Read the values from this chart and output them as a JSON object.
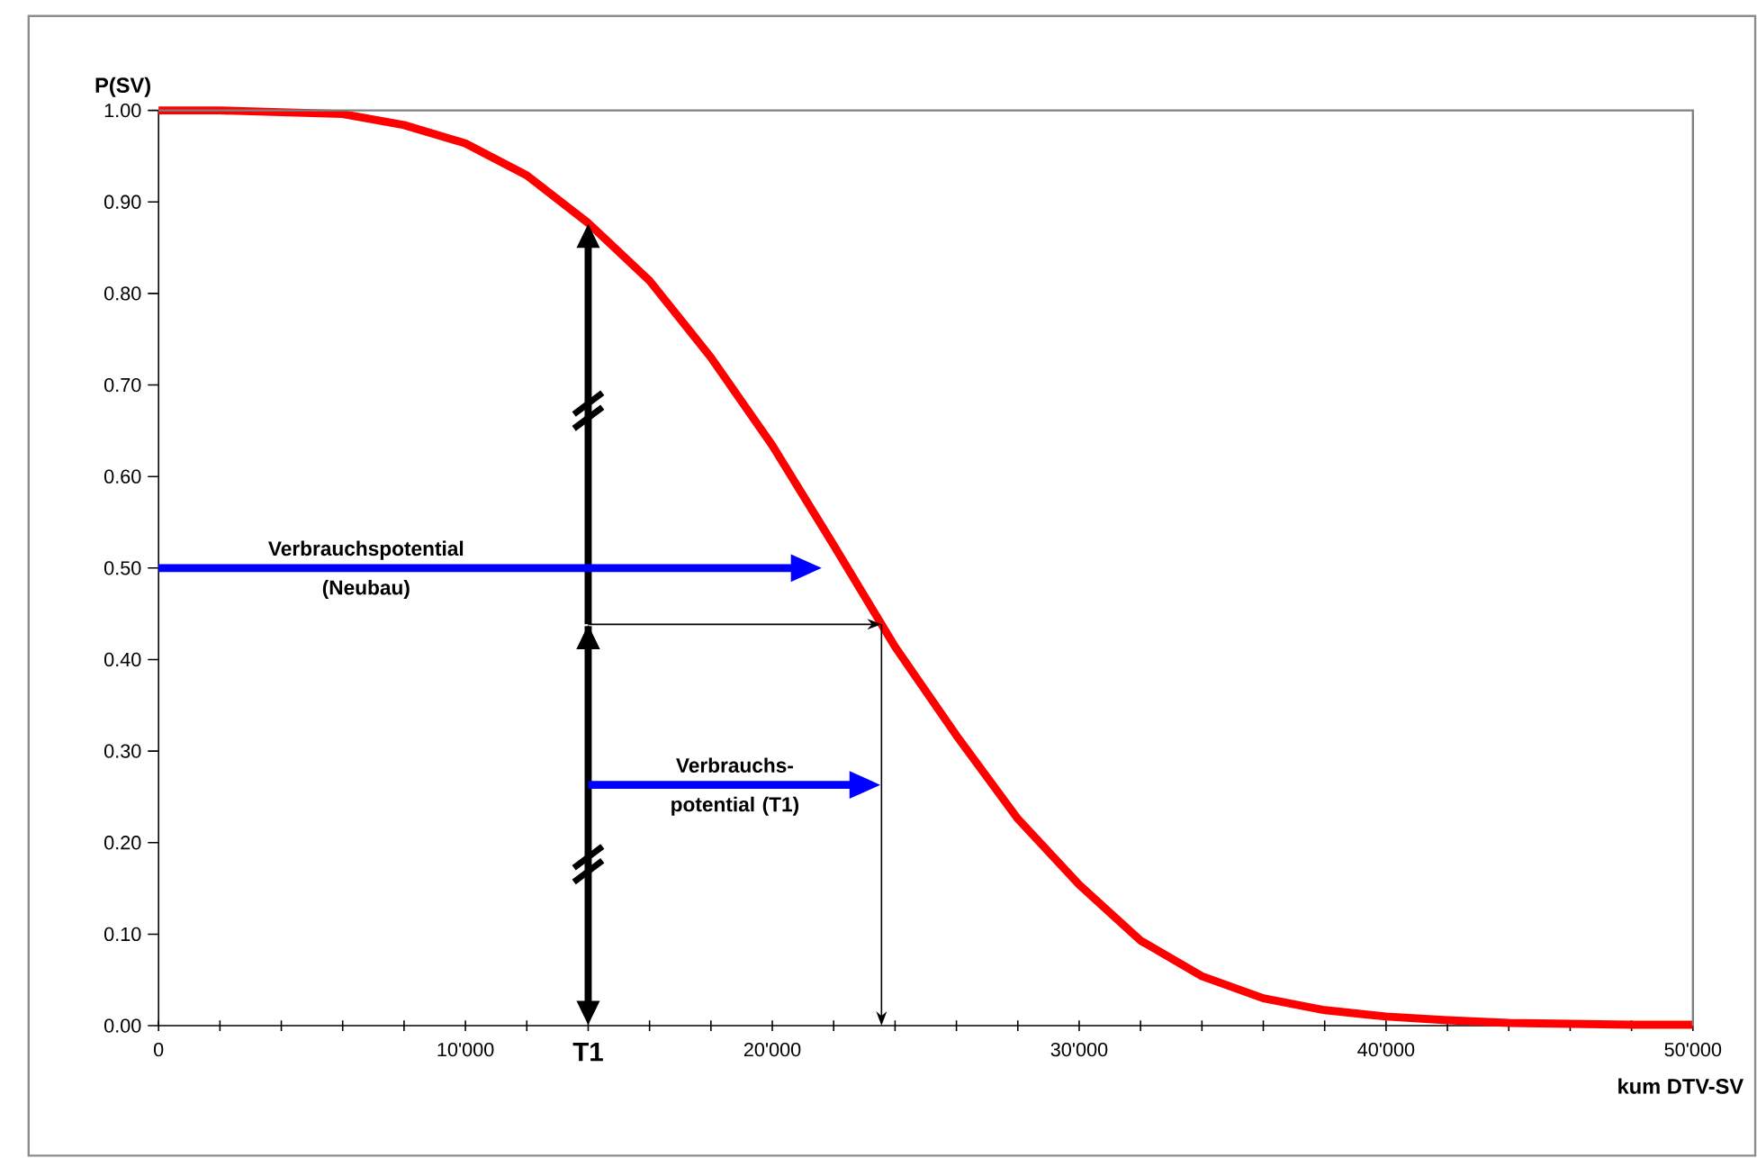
{
  "chart_data": {
    "type": "line",
    "xlabel": "kum DTV-SV",
    "ylabel": "P(SV)",
    "x": [
      0,
      2000,
      4000,
      6000,
      8000,
      10000,
      12000,
      14000,
      16000,
      18000,
      20000,
      22000,
      24000,
      26000,
      28000,
      30000,
      32000,
      34000,
      36000,
      38000,
      40000,
      42000,
      44000,
      46000,
      48000,
      50000
    ],
    "series": [
      {
        "color": "#ff0000",
        "values": [
          1.0,
          1.0,
          0.998,
          0.996,
          0.984,
          0.964,
          0.929,
          0.877,
          0.814,
          0.73,
          0.634,
          0.525,
          0.414,
          0.317,
          0.226,
          0.154,
          0.093,
          0.054,
          0.03,
          0.017,
          0.01,
          0.006,
          0.003,
          0.002,
          0.001,
          0.001
        ]
      }
    ],
    "xlim": [
      0,
      50000
    ],
    "ylim": [
      0,
      1
    ],
    "xticks": [
      {
        "value": 0,
        "label": "0"
      },
      {
        "value": 2000,
        "label": null
      },
      {
        "value": 4000,
        "label": null
      },
      {
        "value": 6000,
        "label": null
      },
      {
        "value": 8000,
        "label": null
      },
      {
        "value": 10000,
        "label": "10'000"
      },
      {
        "value": 12000,
        "label": null
      },
      {
        "value": 14000,
        "label": "T1"
      },
      {
        "value": 16000,
        "label": null
      },
      {
        "value": 18000,
        "label": null
      },
      {
        "value": 20000,
        "label": "20'000"
      },
      {
        "value": 22000,
        "label": null
      },
      {
        "value": 24000,
        "label": null
      },
      {
        "value": 26000,
        "label": null
      },
      {
        "value": 28000,
        "label": null
      },
      {
        "value": 30000,
        "label": "30'000"
      },
      {
        "value": 32000,
        "label": null
      },
      {
        "value": 34000,
        "label": null
      },
      {
        "value": 36000,
        "label": null
      },
      {
        "value": 38000,
        "label": null
      },
      {
        "value": 40000,
        "label": "40'000"
      },
      {
        "value": 42000,
        "label": null
      },
      {
        "value": 44000,
        "label": null
      },
      {
        "value": 46000,
        "label": null
      },
      {
        "value": 48000,
        "label": null
      },
      {
        "value": 50000,
        "label": "50'000"
      }
    ],
    "yticks": [
      {
        "value": 0,
        "label": "0.00"
      },
      {
        "value": 0.1,
        "label": "0.10"
      },
      {
        "value": 0.2,
        "label": "0.20"
      },
      {
        "value": 0.3,
        "label": "0.30"
      },
      {
        "value": 0.4,
        "label": "0.40"
      },
      {
        "value": 0.5,
        "label": "0.50"
      },
      {
        "value": 0.6,
        "label": "0.60"
      },
      {
        "value": 0.7,
        "label": "0.70"
      },
      {
        "value": 0.8,
        "label": "0.80"
      },
      {
        "value": 0.9,
        "label": "0.90"
      },
      {
        "value": 1.0,
        "label": "1.00"
      }
    ],
    "annotations": [
      "Verbrauchspotential (Neubau)",
      "Verbrauchs-potential (T1)"
    ],
    "marker": "none",
    "line_style": "solid"
  }
}
